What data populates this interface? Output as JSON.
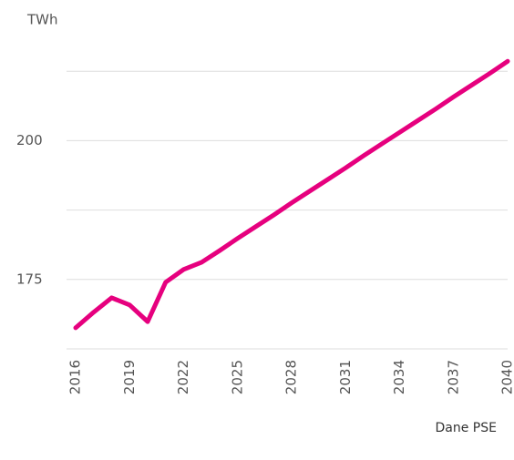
{
  "chart_data": {
    "type": "line",
    "y_label": "TWh",
    "source": "Dane PSE",
    "x": [
      2016,
      2017,
      2018,
      2019,
      2020,
      2021,
      2022,
      2023,
      2024,
      2025,
      2026,
      2027,
      2028,
      2029,
      2030,
      2031,
      2032,
      2033,
      2034,
      2035,
      2036,
      2037,
      2038,
      2039,
      2040
    ],
    "series": [
      {
        "color": "#e6007e",
        "values": [
          166.3,
          169.1,
          171.7,
          170.4,
          167.4,
          174.5,
          176.8,
          178.1,
          180.2,
          182.4,
          184.5,
          186.6,
          188.8,
          190.9,
          193.0,
          195.1,
          197.3,
          199.4,
          201.5,
          203.6,
          205.7,
          207.9,
          210.0,
          212.1,
          214.3
        ]
      }
    ],
    "xlim": [
      2016,
      2040
    ],
    "xticks": [
      2016,
      2019,
      2022,
      2025,
      2028,
      2031,
      2034,
      2037,
      2040
    ],
    "ylim": [
      162.5,
      215
    ],
    "yticks": [
      175,
      200
    ],
    "ygrid": [
      162.5,
      175,
      187.5,
      200,
      212.5
    ],
    "grid": true
  }
}
